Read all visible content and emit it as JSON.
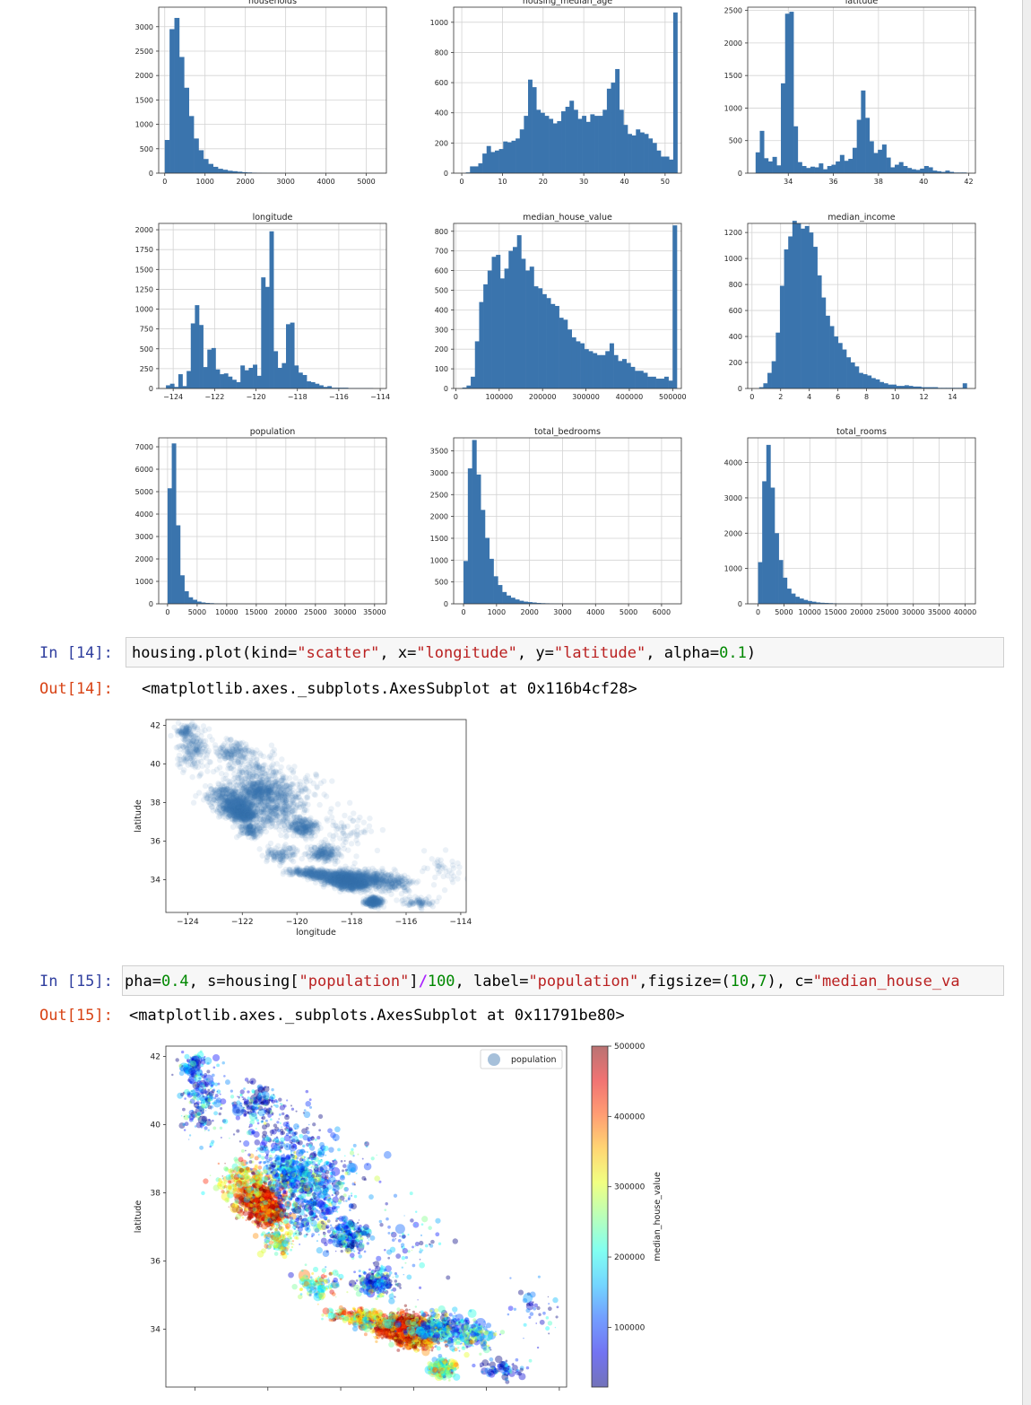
{
  "cells": [
    {
      "in_prompt": "In [14]:",
      "code_tokens": [
        {
          "t": "housing.plot(kind=",
          "c": ""
        },
        {
          "t": "\"scatter\"",
          "c": "str"
        },
        {
          "t": ", x=",
          "c": ""
        },
        {
          "t": "\"longitude\"",
          "c": "str"
        },
        {
          "t": ", y=",
          "c": ""
        },
        {
          "t": "\"latitude\"",
          "c": "str"
        },
        {
          "t": ", alpha=",
          "c": ""
        },
        {
          "t": "0.1",
          "c": "num"
        },
        {
          "t": ")",
          "c": ""
        }
      ],
      "out_prompt": "Out[14]:",
      "output": "<matplotlib.axes._subplots.AxesSubplot at 0x116b4cf28>"
    },
    {
      "in_prompt": "In [15]:",
      "code_tokens": [
        {
          "t": "pha=",
          "c": ""
        },
        {
          "t": "0.4",
          "c": "num"
        },
        {
          "t": ", s=housing[",
          "c": ""
        },
        {
          "t": "\"population\"",
          "c": "str"
        },
        {
          "t": "]",
          "c": ""
        },
        {
          "t": "/",
          "c": "op"
        },
        {
          "t": "100",
          "c": "num"
        },
        {
          "t": ", label=",
          "c": ""
        },
        {
          "t": "\"population\"",
          "c": "str"
        },
        {
          "t": ",figsize=(",
          "c": ""
        },
        {
          "t": "10",
          "c": "num"
        },
        {
          "t": ",",
          "c": ""
        },
        {
          "t": "7",
          "c": "num"
        },
        {
          "t": "), c=",
          "c": ""
        },
        {
          "t": "\"median_house_va",
          "c": "str"
        }
      ],
      "out_prompt": "Out[15]:",
      "output": "<matplotlib.axes._subplots.AxesSubplot at 0x11791be80>"
    }
  ],
  "colors": {
    "bar": "#3a74ad",
    "grid": "#d3d3d3",
    "scatter": "#3a74ad",
    "in_prompt": "#303f9f",
    "out_prompt": "#d84315",
    "string": "#ba2121",
    "number": "#008800"
  },
  "chart_data": [
    {
      "id": "households",
      "type": "bar",
      "title": "households",
      "xlim": [
        -150,
        5500
      ],
      "ylim": [
        0,
        3400
      ],
      "xticks": [
        0,
        1000,
        2000,
        3000,
        4000,
        5000
      ],
      "yticks": [
        0,
        500,
        1000,
        1500,
        2000,
        2500,
        3000
      ],
      "bin_start": 0,
      "bin_width": 120,
      "values": [
        680,
        2950,
        3180,
        2380,
        1750,
        1170,
        710,
        470,
        290,
        190,
        130,
        90,
        70,
        50,
        40,
        30,
        20,
        15,
        10,
        8,
        6,
        5,
        4,
        3,
        3,
        2,
        2,
        2,
        1,
        1,
        1,
        1,
        1,
        1,
        1,
        0,
        0,
        0,
        0,
        0,
        0,
        0,
        0,
        0,
        0,
        0
      ]
    },
    {
      "id": "housing_median_age",
      "type": "bar",
      "title": "housing_median_age",
      "xlim": [
        -2,
        54
      ],
      "ylim": [
        0,
        1100
      ],
      "xticks": [
        0,
        10,
        20,
        30,
        40,
        50
      ],
      "yticks": [
        0,
        200,
        400,
        600,
        800,
        1000
      ],
      "bin_start": 1,
      "bin_width": 1.02,
      "values": [
        5,
        45,
        45,
        65,
        130,
        180,
        140,
        150,
        160,
        210,
        205,
        215,
        230,
        290,
        380,
        620,
        570,
        420,
        400,
        380,
        360,
        330,
        345,
        410,
        440,
        480,
        420,
        360,
        380,
        340,
        390,
        380,
        380,
        420,
        560,
        600,
        690,
        420,
        320,
        260,
        250,
        290,
        270,
        260,
        230,
        200,
        150,
        110,
        110,
        90,
        1065
      ]
    },
    {
      "id": "latitude",
      "type": "bar",
      "title": "latitude",
      "xlim": [
        32.2,
        42.3
      ],
      "ylim": [
        0,
        2550
      ],
      "xticks": [
        34,
        36,
        38,
        40,
        42
      ],
      "yticks": [
        0,
        500,
        1000,
        1500,
        2000,
        2500
      ],
      "bin_start": 32.55,
      "bin_width": 0.187,
      "values": [
        320,
        650,
        230,
        180,
        250,
        120,
        1380,
        2450,
        2480,
        720,
        170,
        110,
        80,
        100,
        90,
        150,
        60,
        110,
        130,
        180,
        280,
        190,
        220,
        390,
        820,
        1270,
        850,
        490,
        310,
        360,
        440,
        240,
        90,
        130,
        170,
        110,
        80,
        60,
        50,
        70,
        110,
        90,
        40,
        30,
        20,
        40,
        20,
        10,
        10,
        10
      ]
    },
    {
      "id": "longitude",
      "type": "bar",
      "title": "longitude",
      "xlim": [
        -124.7,
        -113.7
      ],
      "ylim": [
        0,
        2080
      ],
      "xticks": [
        -124,
        -122,
        -120,
        -118,
        -116,
        -114
      ],
      "yticks": [
        0,
        250,
        500,
        750,
        1000,
        1250,
        1500,
        1750,
        2000
      ],
      "bin_start": -124.35,
      "bin_width": 0.2,
      "values": [
        40,
        60,
        20,
        180,
        30,
        220,
        820,
        1050,
        800,
        270,
        490,
        510,
        240,
        180,
        190,
        150,
        110,
        80,
        290,
        230,
        260,
        300,
        160,
        1400,
        1280,
        1980,
        470,
        260,
        320,
        810,
        830,
        290,
        200,
        170,
        90,
        80,
        60,
        40,
        20,
        30,
        10,
        10,
        10,
        10,
        5,
        5,
        5,
        5,
        5,
        5
      ]
    },
    {
      "id": "median_house_value",
      "type": "bar",
      "title": "median_house_value",
      "xlim": [
        -5000,
        520000
      ],
      "ylim": [
        0,
        840
      ],
      "xticks": [
        0,
        100000,
        200000,
        300000,
        400000,
        500000
      ],
      "yticks": [
        0,
        100,
        200,
        300,
        400,
        500,
        600,
        700,
        800
      ],
      "bin_start": 15000,
      "bin_width": 9700,
      "values": [
        5,
        15,
        60,
        240,
        440,
        530,
        600,
        670,
        680,
        560,
        610,
        700,
        720,
        780,
        660,
        600,
        620,
        520,
        510,
        480,
        460,
        430,
        420,
        360,
        350,
        300,
        260,
        240,
        230,
        200,
        190,
        180,
        170,
        170,
        190,
        230,
        170,
        140,
        150,
        130,
        110,
        90,
        90,
        80,
        60,
        60,
        50,
        50,
        60,
        40,
        830
      ]
    },
    {
      "id": "median_income",
      "type": "bar",
      "title": "median_income",
      "xlim": [
        -0.3,
        15.6
      ],
      "ylim": [
        0,
        1270
      ],
      "xticks": [
        0,
        2,
        4,
        6,
        8,
        10,
        12,
        14
      ],
      "yticks": [
        0,
        200,
        400,
        600,
        800,
        1000,
        1200
      ],
      "bin_start": 0.5,
      "bin_width": 0.29,
      "values": [
        10,
        40,
        120,
        210,
        430,
        790,
        1070,
        1170,
        1290,
        1270,
        1230,
        1250,
        1200,
        1090,
        870,
        700,
        560,
        480,
        400,
        350,
        300,
        240,
        200,
        170,
        120,
        110,
        100,
        80,
        70,
        50,
        40,
        30,
        30,
        20,
        20,
        25,
        20,
        15,
        15,
        10,
        10,
        10,
        10,
        5,
        5,
        5,
        5,
        5,
        5,
        40
      ]
    },
    {
      "id": "population",
      "type": "bar",
      "title": "population",
      "xlim": [
        -1500,
        37000
      ],
      "ylim": [
        0,
        7400
      ],
      "xticks": [
        0,
        5000,
        10000,
        15000,
        20000,
        25000,
        30000,
        35000
      ],
      "yticks": [
        0,
        1000,
        2000,
        3000,
        4000,
        5000,
        6000,
        7000
      ],
      "bin_start": 0,
      "bin_width": 710,
      "values": [
        5150,
        7150,
        3500,
        1270,
        560,
        290,
        180,
        100,
        60,
        40,
        30,
        20,
        15,
        10,
        8,
        6,
        5,
        4,
        3,
        3,
        2,
        2,
        2,
        1,
        1,
        1,
        1,
        1,
        1,
        1,
        1,
        0,
        0,
        0,
        0,
        0,
        0,
        0,
        0,
        0,
        0,
        0,
        0,
        0,
        0,
        0,
        0,
        0,
        0,
        0
      ]
    },
    {
      "id": "total_bedrooms",
      "type": "bar",
      "title": "total_bedrooms",
      "xlim": [
        -300,
        6600
      ],
      "ylim": [
        0,
        3800
      ],
      "xticks": [
        0,
        1000,
        2000,
        3000,
        4000,
        5000,
        6000
      ],
      "yticks": [
        0,
        500,
        1000,
        1500,
        2000,
        2500,
        3000,
        3500
      ],
      "bin_start": 0,
      "bin_width": 130,
      "values": [
        980,
        3100,
        3750,
        2960,
        2150,
        1510,
        1030,
        630,
        430,
        270,
        190,
        140,
        100,
        70,
        50,
        40,
        30,
        20,
        15,
        12,
        10,
        8,
        6,
        5,
        4,
        3,
        3,
        2,
        2,
        1,
        1,
        1,
        1,
        1,
        1,
        1,
        1,
        0,
        0,
        0,
        0,
        0,
        0,
        0,
        0,
        0,
        0,
        0
      ]
    },
    {
      "id": "total_rooms",
      "type": "bar",
      "title": "total_rooms",
      "xlim": [
        -2000,
        42000
      ],
      "ylim": [
        0,
        4700
      ],
      "xticks": [
        0,
        5000,
        10000,
        15000,
        20000,
        25000,
        30000,
        35000,
        40000
      ],
      "yticks": [
        0,
        1000,
        2000,
        3000,
        4000
      ],
      "bin_start": 0,
      "bin_width": 800,
      "values": [
        1180,
        3470,
        4500,
        3290,
        2000,
        1240,
        740,
        430,
        290,
        200,
        150,
        110,
        80,
        60,
        40,
        30,
        25,
        20,
        15,
        10,
        8,
        6,
        5,
        4,
        3,
        3,
        2,
        2,
        1,
        1,
        1,
        1,
        1,
        1,
        1,
        1,
        0,
        0,
        0,
        0,
        0,
        0,
        0,
        0,
        0,
        0,
        0,
        0,
        0,
        0
      ]
    },
    {
      "id": "scatter_alpha",
      "type": "scatter",
      "xlabel": "longitude",
      "ylabel": "latitude",
      "xlim": [
        -124.8,
        -113.8
      ],
      "ylim": [
        32.3,
        42.3
      ],
      "xticks": [
        -124,
        -122,
        -120,
        -118,
        -116,
        -114
      ],
      "yticks": [
        34,
        36,
        38,
        40,
        42
      ],
      "alpha": 0.1
    },
    {
      "id": "scatter_color",
      "type": "scatter",
      "xlabel": "",
      "ylabel": "latitude",
      "xlim": [
        -124.8,
        -113.8
      ],
      "ylim": [
        32.3,
        42.3
      ],
      "yticks": [
        34,
        36,
        38,
        40,
        42
      ],
      "legend": "population",
      "legend_position": "top-right",
      "alpha": 0.4,
      "colorbar": {
        "label": "median_house_value",
        "ticks": [
          100000,
          200000,
          300000,
          400000,
          500000
        ],
        "range": [
          15000,
          500001
        ],
        "colormap": "jet"
      }
    }
  ]
}
